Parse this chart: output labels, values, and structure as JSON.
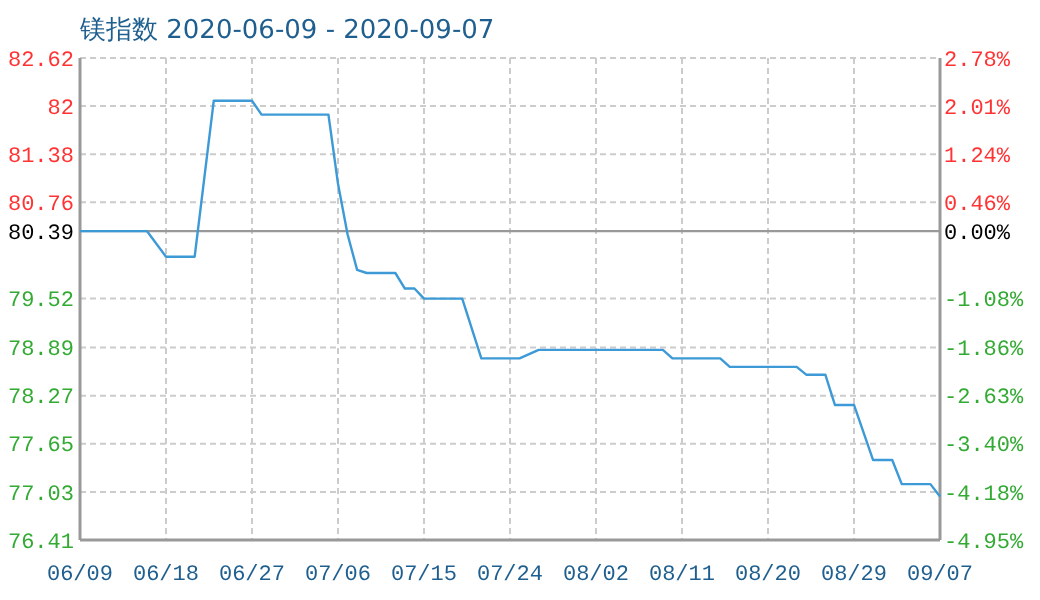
{
  "chart_data": {
    "type": "line",
    "title": "镁指数 2020-06-09 - 2020-09-07",
    "x": [
      "2020-06-09",
      "2020-06-16",
      "2020-06-18",
      "2020-06-21",
      "2020-06-23",
      "2020-06-27",
      "2020-06-28",
      "2020-07-05",
      "2020-07-06",
      "2020-07-07",
      "2020-07-08",
      "2020-07-09",
      "2020-07-12",
      "2020-07-13",
      "2020-07-14",
      "2020-07-15",
      "2020-07-19",
      "2020-07-21",
      "2020-07-25",
      "2020-07-27",
      "2020-08-09",
      "2020-08-10",
      "2020-08-15",
      "2020-08-16",
      "2020-08-23",
      "2020-08-24",
      "2020-08-26",
      "2020-08-27",
      "2020-08-29",
      "2020-08-31",
      "2020-09-02",
      "2020-09-03",
      "2020-09-06",
      "2020-09-07"
    ],
    "series": [
      {
        "color": "#3d9ad6",
        "values": [
          80.39,
          80.39,
          80.06,
          80.06,
          82.07,
          82.07,
          81.89,
          81.89,
          81.0,
          80.35,
          79.89,
          79.85,
          79.85,
          79.65,
          79.65,
          79.52,
          79.52,
          78.75,
          78.75,
          78.86,
          78.86,
          78.75,
          78.75,
          78.64,
          78.64,
          78.54,
          78.54,
          78.15,
          78.15,
          77.44,
          77.44,
          77.13,
          77.13,
          76.97
        ]
      }
    ],
    "xlim": [
      "2020-06-09",
      "2020-09-07"
    ],
    "xticks": [
      {
        "value": "2020-06-09",
        "label": "06/09"
      },
      {
        "value": "2020-06-18",
        "label": "06/18"
      },
      {
        "value": "2020-06-27",
        "label": "06/27"
      },
      {
        "value": "2020-07-06",
        "label": "07/06"
      },
      {
        "value": "2020-07-15",
        "label": "07/15"
      },
      {
        "value": "2020-07-24",
        "label": "07/24"
      },
      {
        "value": "2020-08-02",
        "label": "08/02"
      },
      {
        "value": "2020-08-11",
        "label": "08/11"
      },
      {
        "value": "2020-08-20",
        "label": "08/20"
      },
      {
        "value": "2020-08-29",
        "label": "08/29"
      },
      {
        "value": "2020-09-07",
        "label": "09/07"
      }
    ],
    "ylim": [
      76.41,
      82.62
    ],
    "yticks": [
      76.41,
      77.03,
      77.65,
      78.27,
      78.89,
      79.52,
      80.39,
      80.76,
      81.38,
      82,
      82.62
    ],
    "y2lim": [
      -4.95,
      2.78
    ],
    "y2ticks": [
      {
        "value": -4.95,
        "label": "-4.95%"
      },
      {
        "value": -4.18,
        "label": "-4.18%"
      },
      {
        "value": -3.4,
        "label": "-3.40%"
      },
      {
        "value": -2.63,
        "label": "-2.63%"
      },
      {
        "value": -1.86,
        "label": "-1.86%"
      },
      {
        "value": -1.08,
        "label": "-1.08%"
      },
      {
        "value": 0,
        "label": "0.00%"
      },
      {
        "value": 0.46,
        "label": "0.46%"
      },
      {
        "value": 1.24,
        "label": "1.24%"
      },
      {
        "value": 2.01,
        "label": "2.01%"
      },
      {
        "value": 2.78,
        "label": "2.78%"
      }
    ],
    "ref_lines": [
      {
        "axis": "y",
        "value": 80.39,
        "color": "#999999"
      }
    ],
    "grid": true,
    "line_style": "solid",
    "marker": "none"
  }
}
